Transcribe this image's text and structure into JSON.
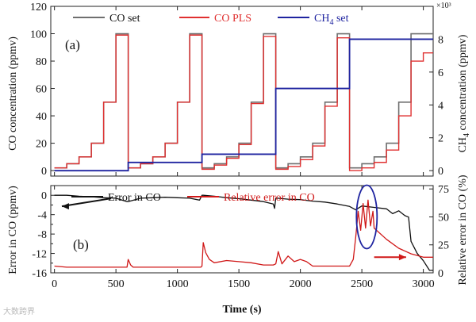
{
  "colors": {
    "co_set": "#6f6f6f",
    "co_pls": "#e03030",
    "ch4_set": "#1f24a0",
    "error_co": "#111111",
    "relative_error": "#d01818",
    "highlight_ellipse": "#1f24a0",
    "arrow_black": "#111111",
    "arrow_red": "#d01818"
  },
  "watermark_text": "大数跨界",
  "chart_data": [
    {
      "type": "line",
      "panel_label": "(a)",
      "xlim": [
        -30,
        3080
      ],
      "x_ticks": [
        0,
        500,
        1000,
        1500,
        2000,
        2500,
        3000
      ],
      "ylabel": "CO concentration (ppmv)",
      "ylim": [
        -4,
        120
      ],
      "y_ticks": [
        0,
        20,
        40,
        60,
        80,
        100,
        120
      ],
      "y2label": "CH4 concentration (ppmv)",
      "y2_multiplier": "×10³",
      "y2lim": [
        -0.33,
        10
      ],
      "y2_ticks": [
        0,
        2,
        4,
        6,
        8
      ],
      "legend": {
        "position": "top",
        "entries": [
          "CO set",
          "CO PLS",
          "CH4 set"
        ]
      },
      "series": [
        {
          "name": "CO set",
          "axis": "left",
          "style": "step",
          "x": [
            0,
            100,
            200,
            300,
            400,
            500,
            600,
            700,
            800,
            900,
            1000,
            1100,
            1200,
            1300,
            1400,
            1500,
            1600,
            1700,
            1800,
            1900,
            2000,
            2100,
            2200,
            2300,
            2400,
            2500,
            2600,
            2700,
            2800,
            2900,
            3000,
            3080
          ],
          "y": [
            2,
            5,
            10,
            20,
            50,
            100,
            2,
            5,
            10,
            20,
            50,
            100,
            2,
            5,
            10,
            20,
            50,
            100,
            2,
            5,
            10,
            20,
            50,
            100,
            2,
            5,
            10,
            20,
            50,
            100,
            100,
            100
          ]
        },
        {
          "name": "CO PLS",
          "axis": "left",
          "style": "step",
          "x": [
            0,
            100,
            200,
            300,
            400,
            500,
            600,
            700,
            800,
            900,
            1000,
            1100,
            1200,
            1300,
            1400,
            1500,
            1600,
            1700,
            1800,
            1900,
            2000,
            2100,
            2200,
            2300,
            2400,
            2500,
            2600,
            2700,
            2800,
            2900,
            3000,
            3080
          ],
          "y": [
            2,
            5,
            10,
            20,
            50,
            99,
            2,
            5,
            10,
            20,
            50,
            99,
            1,
            4,
            9,
            19,
            49,
            98,
            1,
            3,
            8,
            18,
            47,
            97,
            0,
            2,
            6,
            15,
            40,
            80,
            86,
            86
          ]
        },
        {
          "name": "CH4 set",
          "axis": "right",
          "style": "step",
          "x": [
            0,
            600,
            1200,
            1800,
            2400,
            3080
          ],
          "y": [
            0,
            0.5,
            1,
            5,
            8,
            8
          ]
        }
      ]
    },
    {
      "type": "line",
      "panel_label": "(b)",
      "xlabel": "Time (s)",
      "xlim": [
        -30,
        3080
      ],
      "x_ticks": [
        0,
        500,
        1000,
        1500,
        2000,
        2500,
        3000
      ],
      "ylabel": "Error in CO (ppmv)",
      "ylim": [
        -16,
        2
      ],
      "y_ticks": [
        0,
        -4,
        -8,
        -12,
        -16
      ],
      "y_minor_ticks": [
        -2,
        -6,
        -10,
        -14
      ],
      "y2label": "Relative error in CO (%)",
      "y2lim": [
        0,
        78
      ],
      "y2_ticks": [
        0,
        25,
        50,
        75
      ],
      "legend": {
        "position": "top",
        "entries": [
          "Error in CO",
          "Relative error in CO"
        ]
      },
      "series": [
        {
          "name": "Error in CO",
          "axis": "left",
          "x": [
            0,
            100,
            200,
            300,
            400,
            500,
            590,
            600,
            700,
            800,
            900,
            1000,
            1100,
            1180,
            1200,
            1210,
            1300,
            1400,
            1500,
            1600,
            1700,
            1780,
            1790,
            1800,
            1810,
            1900,
            2000,
            2100,
            2200,
            2300,
            2400,
            2450,
            2500,
            2600,
            2700,
            2750,
            2800,
            2850,
            2880,
            2900,
            2950,
            3000,
            3050,
            3080
          ],
          "y": [
            0,
            0,
            -0.2,
            -0.3,
            -0.5,
            -0.6,
            -1.3,
            -1.3,
            -0.6,
            -0.5,
            -0.4,
            -0.5,
            -0.6,
            -1.0,
            0,
            0,
            -0.2,
            -0.5,
            -0.7,
            -1.0,
            -1.3,
            -1.8,
            -2.7,
            -0.6,
            -0.6,
            -0.8,
            -0.9,
            -1.2,
            -1.4,
            -1.8,
            -2.3,
            -3.0,
            -2.2,
            -2.5,
            -2.8,
            -3.8,
            -3.2,
            -4.2,
            -4.5,
            -9.5,
            -12.0,
            -13.5,
            -15.5,
            -15.5
          ]
        },
        {
          "name": "Relative error in CO",
          "axis": "right",
          "x": [
            0,
            100,
            200,
            300,
            400,
            500,
            590,
            600,
            620,
            640,
            700,
            800,
            900,
            1000,
            1100,
            1190,
            1200,
            1210,
            1230,
            1260,
            1300,
            1400,
            1500,
            1600,
            1700,
            1780,
            1800,
            1820,
            1850,
            1900,
            1950,
            2000,
            2050,
            2100,
            2200,
            2300,
            2400,
            2430,
            2450,
            2470,
            2490,
            2510,
            2530,
            2550,
            2570,
            2590,
            2600,
            2700,
            2800,
            2900,
            3000,
            3080
          ],
          "y": [
            6,
            5,
            5,
            5,
            5,
            5,
            5,
            12,
            7,
            5,
            5,
            5,
            5,
            5,
            5,
            5,
            6,
            27,
            18,
            12,
            9,
            11,
            10,
            9,
            7,
            7,
            8,
            19,
            8,
            15,
            10,
            12,
            10,
            6,
            6,
            6,
            6,
            12,
            32,
            55,
            38,
            62,
            40,
            65,
            42,
            55,
            40,
            30,
            22,
            17,
            14,
            14
          ]
        }
      ],
      "annotations": [
        {
          "type": "ellipse",
          "x": 2540,
          "y2": 50,
          "color": "#1f24a0"
        },
        {
          "type": "arrow",
          "direction": "left",
          "at_x": [
            460,
            60
          ],
          "axis": "left",
          "color": "#111111"
        },
        {
          "type": "arrow",
          "direction": "right",
          "at_x": [
            2600,
            2860
          ],
          "axis": "right",
          "color": "#d01818"
        }
      ]
    }
  ]
}
